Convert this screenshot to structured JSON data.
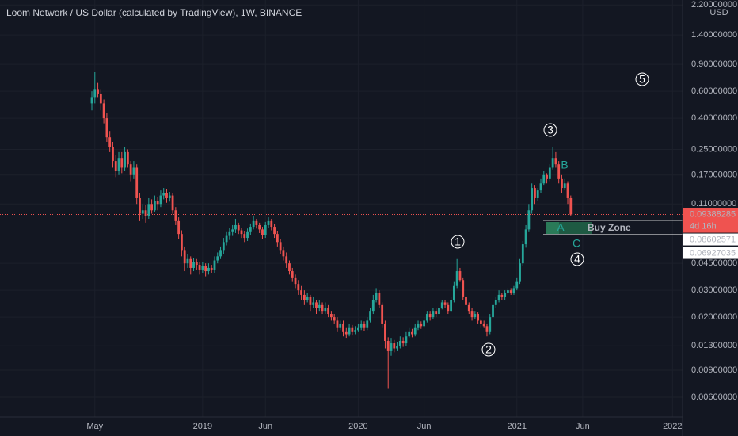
{
  "chart_data": {
    "type": "candlestick",
    "title": "Loom Network / US Dollar (calculated by TradingView), 1W, BINANCE",
    "currency": "USD",
    "log_scale": true,
    "grid": true,
    "up_color": "#26a69a",
    "down_color": "#ef5350",
    "ylim": [
      0.0044,
      2.37
    ],
    "yticks": [
      {
        "value": 2.2,
        "label": "2.20000000"
      },
      {
        "value": 1.4,
        "label": "1.40000000"
      },
      {
        "value": 0.9,
        "label": "0.90000000"
      },
      {
        "value": 0.6,
        "label": "0.60000000"
      },
      {
        "value": 0.4,
        "label": "0.40000000"
      },
      {
        "value": 0.25,
        "label": "0.25000000"
      },
      {
        "value": 0.17,
        "label": "0.17000000"
      },
      {
        "value": 0.11,
        "label": "0.11000000"
      },
      {
        "value": 0.045,
        "label": "0.04500000"
      },
      {
        "value": 0.03,
        "label": "0.03000000"
      },
      {
        "value": 0.02,
        "label": "0.02000000"
      },
      {
        "value": 0.013,
        "label": "0.01300000"
      },
      {
        "value": 0.009,
        "label": "0.00900000"
      },
      {
        "value": 0.006,
        "label": "0.00600000"
      }
    ],
    "categories": [
      null,
      "May",
      null,
      null,
      null,
      null,
      null,
      null,
      null,
      null,
      null,
      null,
      null,
      null,
      null,
      null,
      null,
      null,
      null,
      null,
      null,
      null,
      null,
      null,
      null,
      null,
      null,
      null,
      null,
      null,
      null,
      null,
      null,
      null,
      null,
      null,
      null,
      "2019",
      null,
      null,
      null,
      null,
      null,
      null,
      null,
      null,
      null,
      null,
      null,
      null,
      null,
      null,
      null,
      null,
      null,
      null,
      null,
      null,
      "Jun",
      null,
      null,
      null,
      null,
      null,
      null,
      null,
      null,
      null,
      null,
      null,
      null,
      null,
      null,
      null,
      null,
      null,
      null,
      null,
      null,
      null,
      null,
      null,
      null,
      null,
      null,
      null,
      null,
      null,
      null,
      "2020",
      null,
      null,
      null,
      null,
      null,
      null,
      null,
      null,
      null,
      null,
      null,
      null,
      null,
      null,
      null,
      null,
      null,
      null,
      null,
      null,
      null,
      "Jun",
      null,
      null,
      null,
      null,
      null,
      null,
      null,
      null,
      null,
      null,
      null,
      null,
      null,
      null,
      null,
      null,
      null,
      null,
      null,
      null,
      null,
      null,
      null,
      null,
      null,
      null,
      null,
      null,
      null,
      null,
      "2021",
      null,
      null,
      null,
      null,
      null,
      null,
      null,
      null,
      null,
      null,
      null,
      null,
      null,
      null,
      null,
      null,
      null,
      null,
      null,
      null,
      null,
      "Jun",
      null,
      null,
      null,
      null,
      null,
      null,
      null,
      null,
      null,
      null,
      null,
      null,
      null,
      null,
      null,
      null,
      null,
      null,
      null,
      null,
      null,
      null,
      null,
      null,
      null,
      null,
      null,
      null,
      null,
      "2022",
      null
    ],
    "open": [
      0.5,
      0.55,
      0.62,
      0.58,
      0.5,
      0.4,
      0.3,
      0.26,
      0.21,
      0.18,
      0.22,
      0.19,
      0.24,
      0.2,
      0.17,
      0.19,
      0.12,
      0.095,
      0.1,
      0.092,
      0.11,
      0.1,
      0.115,
      0.11,
      0.125,
      0.13,
      0.12,
      0.125,
      0.1,
      0.085,
      0.07,
      0.055,
      0.045,
      0.048,
      0.042,
      0.046,
      0.044,
      0.041,
      0.043,
      0.04,
      0.042,
      0.041,
      0.047,
      0.05,
      0.055,
      0.062,
      0.068,
      0.072,
      0.075,
      0.08,
      0.074,
      0.07,
      0.066,
      0.072,
      0.078,
      0.085,
      0.08,
      0.075,
      0.069,
      0.08,
      0.085,
      0.078,
      0.07,
      0.062,
      0.055,
      0.05,
      0.045,
      0.04,
      0.036,
      0.033,
      0.03,
      0.028,
      0.026,
      0.027,
      0.024,
      0.025,
      0.023,
      0.024,
      0.022,
      0.023,
      0.021,
      0.02,
      0.019,
      0.017,
      0.018,
      0.016,
      0.0155,
      0.017,
      0.016,
      0.0165,
      0.017,
      0.018,
      0.017,
      0.019,
      0.022,
      0.026,
      0.029,
      0.024,
      0.018,
      0.014,
      0.012,
      0.0135,
      0.0125,
      0.013,
      0.014,
      0.0135,
      0.015,
      0.016,
      0.0155,
      0.017,
      0.018,
      0.0175,
      0.019,
      0.021,
      0.02,
      0.022,
      0.021,
      0.023,
      0.025,
      0.024,
      0.022,
      0.026,
      0.032,
      0.04,
      0.035,
      0.027,
      0.024,
      0.022,
      0.02,
      0.021,
      0.019,
      0.018,
      0.0175,
      0.016,
      0.02,
      0.024,
      0.026,
      0.028,
      0.027,
      0.029,
      0.03,
      0.029,
      0.031,
      0.034,
      0.045,
      0.06,
      0.075,
      0.1,
      0.14,
      0.12,
      0.135,
      0.15,
      0.17,
      0.16,
      0.19,
      0.22,
      0.2,
      0.16,
      0.14,
      0.15,
      0.12,
      null,
      null,
      null,
      null,
      null,
      null,
      null,
      null,
      null,
      null,
      null,
      null,
      null,
      null,
      null,
      null,
      null,
      null,
      null,
      null,
      null,
      null,
      null,
      null,
      null,
      null,
      null,
      null,
      null,
      null,
      null,
      null,
      null,
      null,
      null
    ],
    "high": [
      0.6,
      0.8,
      0.68,
      0.62,
      0.53,
      0.43,
      0.33,
      0.28,
      0.23,
      0.24,
      0.24,
      0.26,
      0.25,
      0.21,
      0.21,
      0.2,
      0.13,
      0.11,
      0.108,
      0.12,
      0.118,
      0.125,
      0.122,
      0.135,
      0.14,
      0.138,
      0.132,
      0.13,
      0.105,
      0.09,
      0.074,
      0.058,
      0.052,
      0.05,
      0.049,
      0.048,
      0.046,
      0.046,
      0.045,
      0.045,
      0.044,
      0.05,
      0.053,
      0.058,
      0.066,
      0.072,
      0.077,
      0.08,
      0.088,
      0.083,
      0.077,
      0.073,
      0.076,
      0.082,
      0.092,
      0.088,
      0.083,
      0.078,
      0.084,
      0.09,
      0.088,
      0.081,
      0.073,
      0.065,
      0.058,
      0.053,
      0.047,
      0.042,
      0.038,
      0.035,
      0.032,
      0.03,
      0.029,
      0.028,
      0.027,
      0.026,
      0.026,
      0.025,
      0.025,
      0.024,
      0.022,
      0.021,
      0.02,
      0.019,
      0.019,
      0.017,
      0.018,
      0.0178,
      0.0175,
      0.018,
      0.019,
      0.0188,
      0.02,
      0.023,
      0.028,
      0.031,
      0.03,
      0.025,
      0.019,
      0.0148,
      0.0145,
      0.0142,
      0.0138,
      0.015,
      0.0148,
      0.016,
      0.017,
      0.0168,
      0.018,
      0.019,
      0.0188,
      0.02,
      0.022,
      0.022,
      0.023,
      0.0228,
      0.024,
      0.026,
      0.026,
      0.025,
      0.027,
      0.034,
      0.048,
      0.042,
      0.036,
      0.028,
      0.025,
      0.023,
      0.022,
      0.0215,
      0.0195,
      0.019,
      0.018,
      0.021,
      0.025,
      0.027,
      0.03,
      0.029,
      0.03,
      0.031,
      0.031,
      0.032,
      0.036,
      0.048,
      0.063,
      0.08,
      0.11,
      0.15,
      0.145,
      0.14,
      0.16,
      0.18,
      0.175,
      0.2,
      0.26,
      0.24,
      0.21,
      0.17,
      0.16,
      0.155,
      0.125,
      null,
      null,
      null,
      null,
      null,
      null,
      null,
      null,
      null,
      null,
      null,
      null,
      null,
      null,
      null,
      null,
      null,
      null,
      null,
      null,
      null,
      null,
      null,
      null,
      null,
      null,
      null,
      null,
      null,
      null,
      null,
      null,
      null,
      null,
      null
    ],
    "low": [
      0.45,
      0.5,
      0.55,
      0.45,
      0.37,
      0.28,
      0.24,
      0.19,
      0.165,
      0.17,
      0.175,
      0.18,
      0.19,
      0.155,
      0.16,
      0.11,
      0.085,
      0.088,
      0.083,
      0.088,
      0.095,
      0.097,
      0.1,
      0.105,
      0.118,
      0.112,
      0.114,
      0.095,
      0.08,
      0.065,
      0.05,
      0.04,
      0.042,
      0.038,
      0.04,
      0.041,
      0.038,
      0.039,
      0.037,
      0.038,
      0.039,
      0.039,
      0.045,
      0.048,
      0.052,
      0.059,
      0.064,
      0.068,
      0.071,
      0.07,
      0.066,
      0.062,
      0.063,
      0.069,
      0.075,
      0.076,
      0.071,
      0.065,
      0.066,
      0.077,
      0.074,
      0.066,
      0.058,
      0.052,
      0.047,
      0.042,
      0.038,
      0.034,
      0.031,
      0.028,
      0.026,
      0.024,
      0.025,
      0.022,
      0.023,
      0.021,
      0.022,
      0.021,
      0.021,
      0.02,
      0.019,
      0.018,
      0.016,
      0.0165,
      0.015,
      0.0145,
      0.015,
      0.0152,
      0.0155,
      0.016,
      0.0165,
      0.0162,
      0.0165,
      0.0185,
      0.021,
      0.025,
      0.023,
      0.017,
      0.0125,
      0.0068,
      0.0112,
      0.0118,
      0.012,
      0.0125,
      0.0128,
      0.013,
      0.0145,
      0.0148,
      0.015,
      0.0165,
      0.0168,
      0.017,
      0.0185,
      0.019,
      0.0195,
      0.02,
      0.0205,
      0.0225,
      0.023,
      0.021,
      0.0215,
      0.025,
      0.031,
      0.034,
      0.026,
      0.023,
      0.021,
      0.019,
      0.0195,
      0.018,
      0.017,
      0.017,
      0.015,
      0.0155,
      0.0195,
      0.023,
      0.025,
      0.026,
      0.026,
      0.028,
      0.028,
      0.028,
      0.03,
      0.033,
      0.043,
      0.057,
      0.072,
      0.095,
      0.11,
      0.115,
      0.13,
      0.145,
      0.15,
      0.155,
      0.185,
      0.19,
      0.15,
      0.13,
      0.135,
      0.11,
      0.092,
      null,
      null,
      null,
      null,
      null,
      null,
      null,
      null,
      null,
      null,
      null,
      null,
      null,
      null,
      null,
      null,
      null,
      null,
      null,
      null,
      null,
      null,
      null,
      null,
      null,
      null,
      null,
      null,
      null,
      null,
      null,
      null,
      null,
      null,
      null
    ],
    "close": [
      0.55,
      0.62,
      0.58,
      0.5,
      0.4,
      0.3,
      0.26,
      0.21,
      0.18,
      0.22,
      0.19,
      0.24,
      0.2,
      0.17,
      0.19,
      0.12,
      0.095,
      0.1,
      0.092,
      0.11,
      0.1,
      0.115,
      0.11,
      0.125,
      0.13,
      0.12,
      0.125,
      0.1,
      0.085,
      0.07,
      0.055,
      0.045,
      0.048,
      0.042,
      0.046,
      0.044,
      0.041,
      0.043,
      0.04,
      0.042,
      0.041,
      0.047,
      0.05,
      0.055,
      0.062,
      0.068,
      0.072,
      0.075,
      0.08,
      0.074,
      0.07,
      0.066,
      0.072,
      0.078,
      0.085,
      0.08,
      0.075,
      0.069,
      0.08,
      0.085,
      0.078,
      0.07,
      0.062,
      0.055,
      0.05,
      0.045,
      0.04,
      0.036,
      0.033,
      0.03,
      0.028,
      0.026,
      0.027,
      0.024,
      0.025,
      0.023,
      0.024,
      0.022,
      0.023,
      0.021,
      0.02,
      0.019,
      0.017,
      0.018,
      0.016,
      0.0155,
      0.017,
      0.016,
      0.0165,
      0.017,
      0.018,
      0.017,
      0.019,
      0.022,
      0.026,
      0.029,
      0.024,
      0.018,
      0.014,
      0.012,
      0.0135,
      0.0125,
      0.013,
      0.014,
      0.0135,
      0.015,
      0.016,
      0.0155,
      0.017,
      0.018,
      0.0175,
      0.019,
      0.021,
      0.02,
      0.022,
      0.021,
      0.023,
      0.025,
      0.024,
      0.022,
      0.026,
      0.032,
      0.04,
      0.035,
      0.027,
      0.024,
      0.022,
      0.02,
      0.021,
      0.019,
      0.018,
      0.0175,
      0.016,
      0.02,
      0.024,
      0.026,
      0.028,
      0.027,
      0.029,
      0.03,
      0.029,
      0.031,
      0.034,
      0.045,
      0.06,
      0.075,
      0.1,
      0.14,
      0.12,
      0.135,
      0.15,
      0.17,
      0.16,
      0.19,
      0.22,
      0.2,
      0.16,
      0.14,
      0.15,
      0.12,
      0.09388285,
      null,
      null,
      null,
      null,
      null,
      null,
      null,
      null,
      null,
      null,
      null,
      null,
      null,
      null,
      null,
      null,
      null,
      null,
      null,
      null,
      null,
      null,
      null,
      null,
      null,
      null,
      null,
      null,
      null,
      null,
      null,
      null,
      null,
      null,
      null
    ],
    "countdown": "4d 16h",
    "levels": [
      0.08602571,
      0.06927035
    ],
    "wave_labels": [
      "1",
      "2",
      "3",
      "4",
      "5"
    ],
    "letter_labels": [
      "A",
      "B",
      "C"
    ],
    "zone_label": "Buy Zone"
  }
}
